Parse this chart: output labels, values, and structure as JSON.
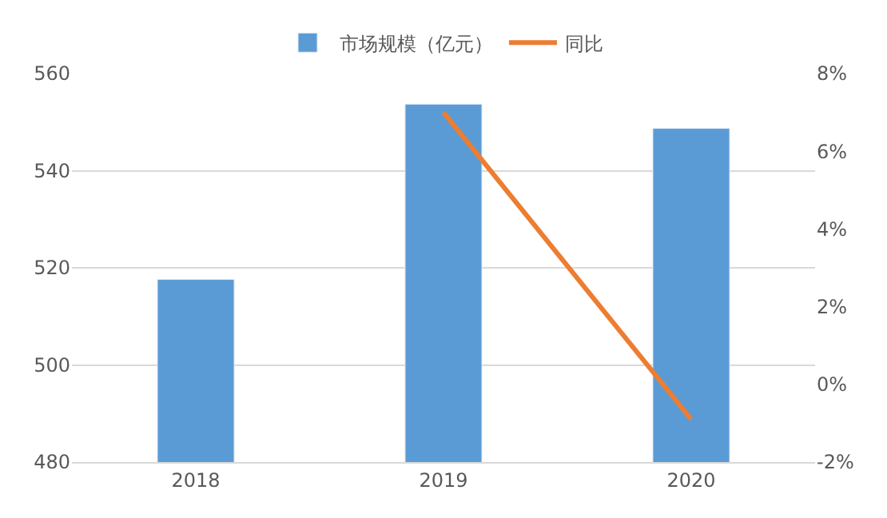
{
  "chart_data": {
    "type": "bar",
    "categories": [
      "2018",
      "2019",
      "2020"
    ],
    "series": [
      {
        "name": "市场规模（亿元）",
        "color": "#5b9bd5",
        "values": [
          517.6,
          553.7,
          548.7
        ]
      },
      {
        "name": "同比",
        "type": "line",
        "axis": "y2",
        "color": "#ed7d31",
        "values": [
          null,
          7.0,
          -0.9
        ]
      }
    ],
    "ylim": [
      480,
      560
    ],
    "yticks": [
      480,
      500,
      520,
      540,
      560
    ],
    "y2lim": [
      -2,
      8
    ],
    "y2ticks": [
      {
        "value": -2,
        "label": "-2%"
      },
      {
        "value": 0,
        "label": "0%"
      },
      {
        "value": 2,
        "label": "2%"
      },
      {
        "value": 4,
        "label": "4%"
      },
      {
        "value": 6,
        "label": "6%"
      },
      {
        "value": 8,
        "label": "8%"
      }
    ],
    "grid": "y",
    "legend": "top",
    "marker": "none"
  }
}
